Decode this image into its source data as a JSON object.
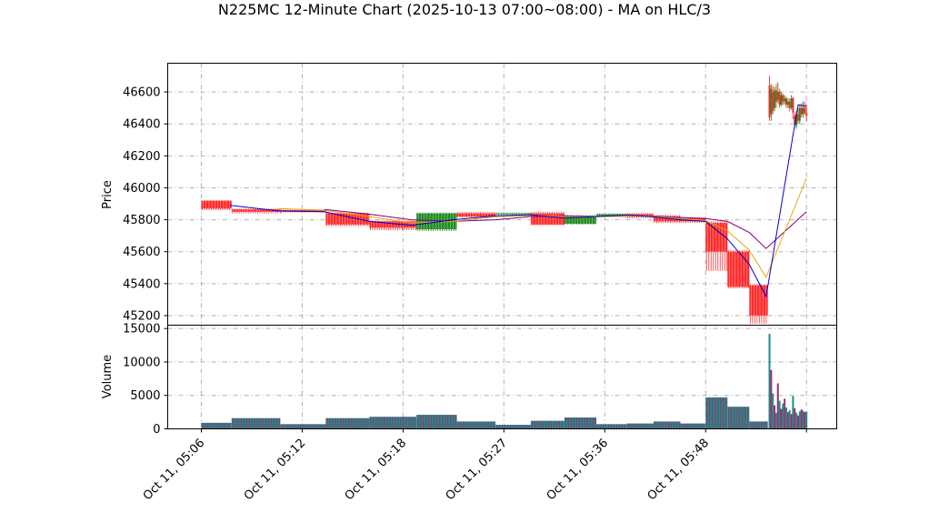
{
  "chart_data": {
    "type": "candlestick",
    "title": "N225MC 12-Minute Chart (2025-10-13 07:00~08:00) - MA on HLC/3",
    "price_panel": {
      "ylabel": "Price",
      "ylim": [
        45140,
        46780
      ],
      "yticks": [
        45200,
        45400,
        45600,
        45800,
        46000,
        46200,
        46400,
        46600
      ],
      "grid": true
    },
    "volume_panel": {
      "ylabel": "Volume",
      "ylim": [
        0,
        15500
      ],
      "yticks": [
        0,
        5000,
        10000,
        15000
      ],
      "grid": true
    },
    "xticks": [
      {
        "label": "Oct 11, 05:06",
        "t": 0.0
      },
      {
        "label": "Oct 11, 05:12",
        "t": 6.0
      },
      {
        "label": "Oct 11, 05:18",
        "t": 12.0
      },
      {
        "label": "Oct 11, 05:27",
        "t": 18.0
      },
      {
        "label": "Oct 11, 05:36",
        "t": 24.0
      },
      {
        "label": "Oct 11, 05:48",
        "t": 30.0
      },
      {
        "label": "",
        "t": 36.0
      }
    ],
    "xlim": [
      -2.0,
      37.8
    ],
    "colors": {
      "up": "#228b22",
      "down": "#ff2a2a",
      "ma_short": "#0000cc",
      "ma_mid": "#e6a817",
      "ma_long": "#800080",
      "vol_a": "#1f8a8a",
      "vol_b": "#a0306a"
    },
    "candle_groups": [
      {
        "t0": 0.0,
        "t1": 1.8,
        "o": 45920,
        "c": 45870,
        "h": 45920,
        "l": 45860
      },
      {
        "t0": 1.8,
        "t1": 4.7,
        "o": 45865,
        "c": 45850,
        "h": 45870,
        "l": 45840
      },
      {
        "t0": 4.7,
        "t1": 7.4,
        "o": 45860,
        "c": 45850,
        "h": 45865,
        "l": 45845
      },
      {
        "t0": 7.4,
        "t1": 10.0,
        "o": 45840,
        "c": 45770,
        "h": 45845,
        "l": 45760
      },
      {
        "t0": 10.0,
        "t1": 12.8,
        "o": 45790,
        "c": 45750,
        "h": 45795,
        "l": 45735
      },
      {
        "t0": 12.8,
        "t1": 15.2,
        "o": 45740,
        "c": 45840,
        "h": 45845,
        "l": 45730
      },
      {
        "t0": 15.2,
        "t1": 17.5,
        "o": 45840,
        "c": 45820,
        "h": 45848,
        "l": 45815
      },
      {
        "t0": 17.5,
        "t1": 19.6,
        "o": 45835,
        "c": 45840,
        "h": 45845,
        "l": 45830
      },
      {
        "t0": 19.6,
        "t1": 21.6,
        "o": 45840,
        "c": 45770,
        "h": 45850,
        "l": 45765
      },
      {
        "t0": 21.6,
        "t1": 23.5,
        "o": 45775,
        "c": 45820,
        "h": 45830,
        "l": 45770
      },
      {
        "t0": 23.5,
        "t1": 25.3,
        "o": 45825,
        "c": 45835,
        "h": 45840,
        "l": 45820
      },
      {
        "t0": 25.3,
        "t1": 26.9,
        "o": 45835,
        "c": 45820,
        "h": 45842,
        "l": 45810
      },
      {
        "t0": 26.9,
        "t1": 28.5,
        "o": 45820,
        "c": 45790,
        "h": 45830,
        "l": 45780
      },
      {
        "t0": 28.5,
        "t1": 30.0,
        "o": 45810,
        "c": 45790,
        "h": 45815,
        "l": 45780
      },
      {
        "t0": 30.0,
        "t1": 31.3,
        "o": 45780,
        "c": 45600,
        "h": 45790,
        "l": 45480
      },
      {
        "t0": 31.3,
        "t1": 32.6,
        "o": 45600,
        "c": 45380,
        "h": 45610,
        "l": 45370
      },
      {
        "t0": 32.6,
        "t1": 33.7,
        "o": 45390,
        "c": 45200,
        "h": 45395,
        "l": 45150
      }
    ],
    "late_candles": [
      {
        "t": 33.8,
        "o": 46640,
        "c": 46440,
        "h": 46700,
        "l": 46420
      },
      {
        "t": 33.9,
        "o": 46460,
        "c": 46620,
        "h": 46650,
        "l": 46420
      },
      {
        "t": 34.0,
        "o": 46600,
        "c": 46480,
        "h": 46640,
        "l": 46460
      },
      {
        "t": 34.1,
        "o": 46500,
        "c": 46610,
        "h": 46630,
        "l": 46480
      },
      {
        "t": 34.2,
        "o": 46610,
        "c": 46540,
        "h": 46650,
        "l": 46500
      },
      {
        "t": 34.3,
        "o": 46550,
        "c": 46600,
        "h": 46660,
        "l": 46530
      },
      {
        "t": 34.4,
        "o": 46600,
        "c": 46520,
        "h": 46620,
        "l": 46500
      },
      {
        "t": 34.5,
        "o": 46520,
        "c": 46580,
        "h": 46600,
        "l": 46510
      },
      {
        "t": 34.6,
        "o": 46580,
        "c": 46540,
        "h": 46590,
        "l": 46520
      },
      {
        "t": 34.7,
        "o": 46540,
        "c": 46560,
        "h": 46580,
        "l": 46520
      },
      {
        "t": 34.8,
        "o": 46560,
        "c": 46520,
        "h": 46570,
        "l": 46500
      },
      {
        "t": 34.9,
        "o": 46520,
        "c": 46540,
        "h": 46560,
        "l": 46500
      },
      {
        "t": 35.0,
        "o": 46540,
        "c": 46500,
        "h": 46560,
        "l": 46480
      },
      {
        "t": 35.1,
        "o": 46500,
        "c": 46560,
        "h": 46580,
        "l": 46490
      },
      {
        "t": 35.2,
        "o": 46560,
        "c": 46470,
        "h": 46570,
        "l": 46430
      },
      {
        "t": 35.3,
        "o": 46450,
        "c": 46400,
        "h": 46470,
        "l": 46380
      },
      {
        "t": 35.4,
        "o": 46390,
        "c": 46460,
        "h": 46480,
        "l": 46370
      },
      {
        "t": 35.5,
        "o": 46460,
        "c": 46420,
        "h": 46500,
        "l": 46400
      },
      {
        "t": 35.6,
        "o": 46420,
        "c": 46500,
        "h": 46520,
        "l": 46400
      },
      {
        "t": 35.7,
        "o": 46500,
        "c": 46460,
        "h": 46530,
        "l": 46440
      },
      {
        "t": 35.8,
        "o": 46460,
        "c": 46500,
        "h": 46540,
        "l": 46440
      },
      {
        "t": 35.9,
        "o": 46500,
        "c": 46470,
        "h": 46540,
        "l": 46460
      },
      {
        "t": 36.0,
        "o": 46470,
        "c": 46450,
        "h": 46520,
        "l": 46420
      }
    ],
    "ma_short": [
      [
        1.7,
        45890
      ],
      [
        4.6,
        45855
      ],
      [
        7.3,
        45850
      ],
      [
        10.0,
        45790
      ],
      [
        12.5,
        45765
      ],
      [
        15.0,
        45800
      ],
      [
        17.5,
        45825
      ],
      [
        19.6,
        45830
      ],
      [
        21.6,
        45810
      ],
      [
        23.5,
        45820
      ],
      [
        25.3,
        45830
      ],
      [
        26.9,
        45818
      ],
      [
        28.5,
        45800
      ],
      [
        30.0,
        45790
      ],
      [
        31.3,
        45680
      ],
      [
        32.6,
        45520
      ],
      [
        33.6,
        45320
      ],
      [
        35.5,
        46520
      ],
      [
        36.0,
        46510
      ]
    ],
    "ma_mid": [
      [
        4.6,
        45870
      ],
      [
        7.3,
        45860
      ],
      [
        10.0,
        45820
      ],
      [
        12.5,
        45780
      ],
      [
        15.0,
        45790
      ],
      [
        17.5,
        45818
      ],
      [
        19.6,
        45828
      ],
      [
        21.6,
        45820
      ],
      [
        23.5,
        45818
      ],
      [
        25.3,
        45825
      ],
      [
        26.9,
        45822
      ],
      [
        28.5,
        45808
      ],
      [
        30.0,
        45795
      ],
      [
        31.3,
        45730
      ],
      [
        32.6,
        45610
      ],
      [
        33.6,
        45440
      ],
      [
        36.0,
        46060
      ]
    ],
    "ma_long": [
      [
        7.3,
        45865
      ],
      [
        10.0,
        45835
      ],
      [
        12.5,
        45800
      ],
      [
        15.0,
        45790
      ],
      [
        17.5,
        45800
      ],
      [
        19.6,
        45820
      ],
      [
        21.6,
        45825
      ],
      [
        23.5,
        45820
      ],
      [
        25.3,
        45822
      ],
      [
        26.9,
        45824
      ],
      [
        28.5,
        45815
      ],
      [
        30.0,
        45808
      ],
      [
        31.3,
        45790
      ],
      [
        32.6,
        45720
      ],
      [
        33.6,
        45620
      ],
      [
        36.0,
        45850
      ]
    ],
    "volume_groups": [
      {
        "t0": 0.0,
        "t1": 1.8,
        "v": 900
      },
      {
        "t0": 1.8,
        "t1": 4.7,
        "v": 1600
      },
      {
        "t0": 4.7,
        "t1": 7.4,
        "v": 700
      },
      {
        "t0": 7.4,
        "t1": 10.0,
        "v": 1600
      },
      {
        "t0": 10.0,
        "t1": 12.8,
        "v": 1800
      },
      {
        "t0": 12.8,
        "t1": 15.2,
        "v": 2100
      },
      {
        "t0": 15.2,
        "t1": 17.5,
        "v": 1100
      },
      {
        "t0": 17.5,
        "t1": 19.6,
        "v": 600
      },
      {
        "t0": 19.6,
        "t1": 21.6,
        "v": 1200
      },
      {
        "t0": 21.6,
        "t1": 23.5,
        "v": 1700
      },
      {
        "t0": 23.5,
        "t1": 25.3,
        "v": 700
      },
      {
        "t0": 25.3,
        "t1": 26.9,
        "v": 800
      },
      {
        "t0": 26.9,
        "t1": 28.5,
        "v": 1100
      },
      {
        "t0": 28.5,
        "t1": 30.0,
        "v": 800
      },
      {
        "t0": 30.0,
        "t1": 31.3,
        "v": 4700
      },
      {
        "t0": 31.3,
        "t1": 32.6,
        "v": 3300
      },
      {
        "t0": 32.6,
        "t1": 33.7,
        "v": 1100
      }
    ],
    "late_volumes": [
      {
        "t": 33.8,
        "v": 14200
      },
      {
        "t": 33.9,
        "v": 8800
      },
      {
        "t": 34.0,
        "v": 5300
      },
      {
        "t": 34.1,
        "v": 3500
      },
      {
        "t": 34.2,
        "v": 2400
      },
      {
        "t": 34.3,
        "v": 6800
      },
      {
        "t": 34.4,
        "v": 4200
      },
      {
        "t": 34.5,
        "v": 3000
      },
      {
        "t": 34.6,
        "v": 3800
      },
      {
        "t": 34.7,
        "v": 4500
      },
      {
        "t": 34.8,
        "v": 3200
      },
      {
        "t": 34.9,
        "v": 2500
      },
      {
        "t": 35.0,
        "v": 2800
      },
      {
        "t": 35.1,
        "v": 2200
      },
      {
        "t": 35.2,
        "v": 4900
      },
      {
        "t": 35.3,
        "v": 3100
      },
      {
        "t": 35.4,
        "v": 2400
      },
      {
        "t": 35.5,
        "v": 2000
      },
      {
        "t": 35.6,
        "v": 2600
      },
      {
        "t": 35.7,
        "v": 2900
      },
      {
        "t": 35.8,
        "v": 2700
      },
      {
        "t": 35.9,
        "v": 2500
      },
      {
        "t": 36.0,
        "v": 2600
      }
    ]
  }
}
